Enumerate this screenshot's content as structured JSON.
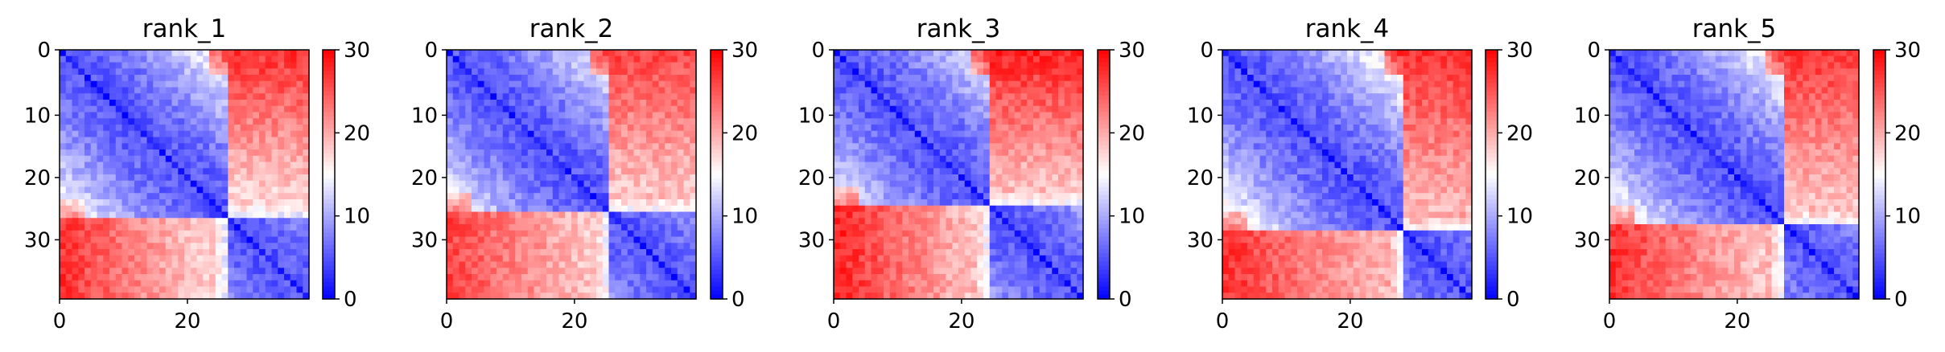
{
  "colors": {
    "low": "#0000ff",
    "mid": "#ffffff",
    "high": "#ff0000"
  },
  "chart_data": [
    {
      "type": "heatmap",
      "title": "rank_1",
      "grid_size": 40,
      "colormap": "bwr",
      "vmin": 0,
      "vmax": 30,
      "x_ticks": [
        0,
        20
      ],
      "y_ticks": [
        0,
        10,
        20,
        30
      ],
      "colorbar_ticks": [
        0,
        10,
        20,
        30
      ],
      "cluster_boundary": 27,
      "far_level": 27,
      "off_block_level": 16,
      "within_level": 5,
      "diagonal_level": 1
    },
    {
      "type": "heatmap",
      "title": "rank_2",
      "grid_size": 40,
      "colormap": "bwr",
      "vmin": 0,
      "vmax": 30,
      "x_ticks": [
        0,
        20
      ],
      "y_ticks": [
        0,
        10,
        20,
        30
      ],
      "colorbar_ticks": [
        0,
        10,
        20,
        30
      ],
      "cluster_boundary": 26,
      "far_level": 26,
      "off_block_level": 17,
      "within_level": 5,
      "diagonal_level": 1
    },
    {
      "type": "heatmap",
      "title": "rank_3",
      "grid_size": 40,
      "colormap": "bwr",
      "vmin": 0,
      "vmax": 30,
      "x_ticks": [
        0,
        20
      ],
      "y_ticks": [
        0,
        10,
        20,
        30
      ],
      "colorbar_ticks": [
        0,
        10,
        20,
        30
      ],
      "cluster_boundary": 25,
      "far_level": 28,
      "off_block_level": 17,
      "within_level": 5,
      "diagonal_level": 1
    },
    {
      "type": "heatmap",
      "title": "rank_4",
      "grid_size": 40,
      "colormap": "bwr",
      "vmin": 0,
      "vmax": 30,
      "x_ticks": [
        0,
        20
      ],
      "y_ticks": [
        0,
        10,
        20,
        30
      ],
      "colorbar_ticks": [
        0,
        10,
        20,
        30
      ],
      "cluster_boundary": 29,
      "far_level": 27,
      "off_block_level": 18,
      "within_level": 5,
      "diagonal_level": 1
    },
    {
      "type": "heatmap",
      "title": "rank_5",
      "grid_size": 40,
      "colormap": "bwr",
      "vmin": 0,
      "vmax": 30,
      "x_ticks": [
        0,
        20
      ],
      "y_ticks": [
        0,
        10,
        20,
        30
      ],
      "colorbar_ticks": [
        0,
        10,
        20,
        30
      ],
      "cluster_boundary": 28,
      "far_level": 27,
      "off_block_level": 17,
      "within_level": 5,
      "diagonal_level": 1
    }
  ]
}
